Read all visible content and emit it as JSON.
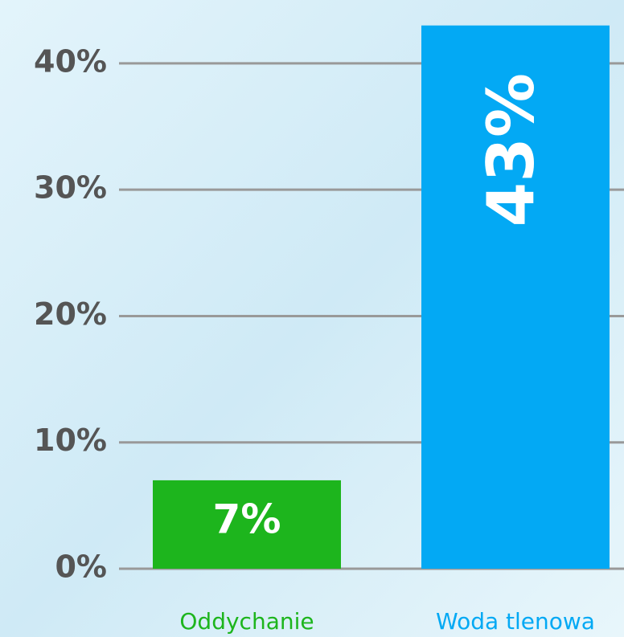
{
  "chart_data": {
    "type": "bar",
    "categories": [
      "Oddychanie",
      "Woda tlenowa"
    ],
    "values": [
      7,
      43
    ],
    "value_labels": [
      "7%",
      "43%"
    ],
    "colors": [
      "#1db51d",
      "#03a9f4"
    ],
    "ylim": [
      0,
      45
    ],
    "yticks": [
      {
        "value": 0,
        "label": "0%"
      },
      {
        "value": 10,
        "label": "10%"
      },
      {
        "value": 20,
        "label": "20%"
      },
      {
        "value": 30,
        "label": "30%"
      },
      {
        "value": 40,
        "label": "40%"
      }
    ],
    "grid": true
  }
}
